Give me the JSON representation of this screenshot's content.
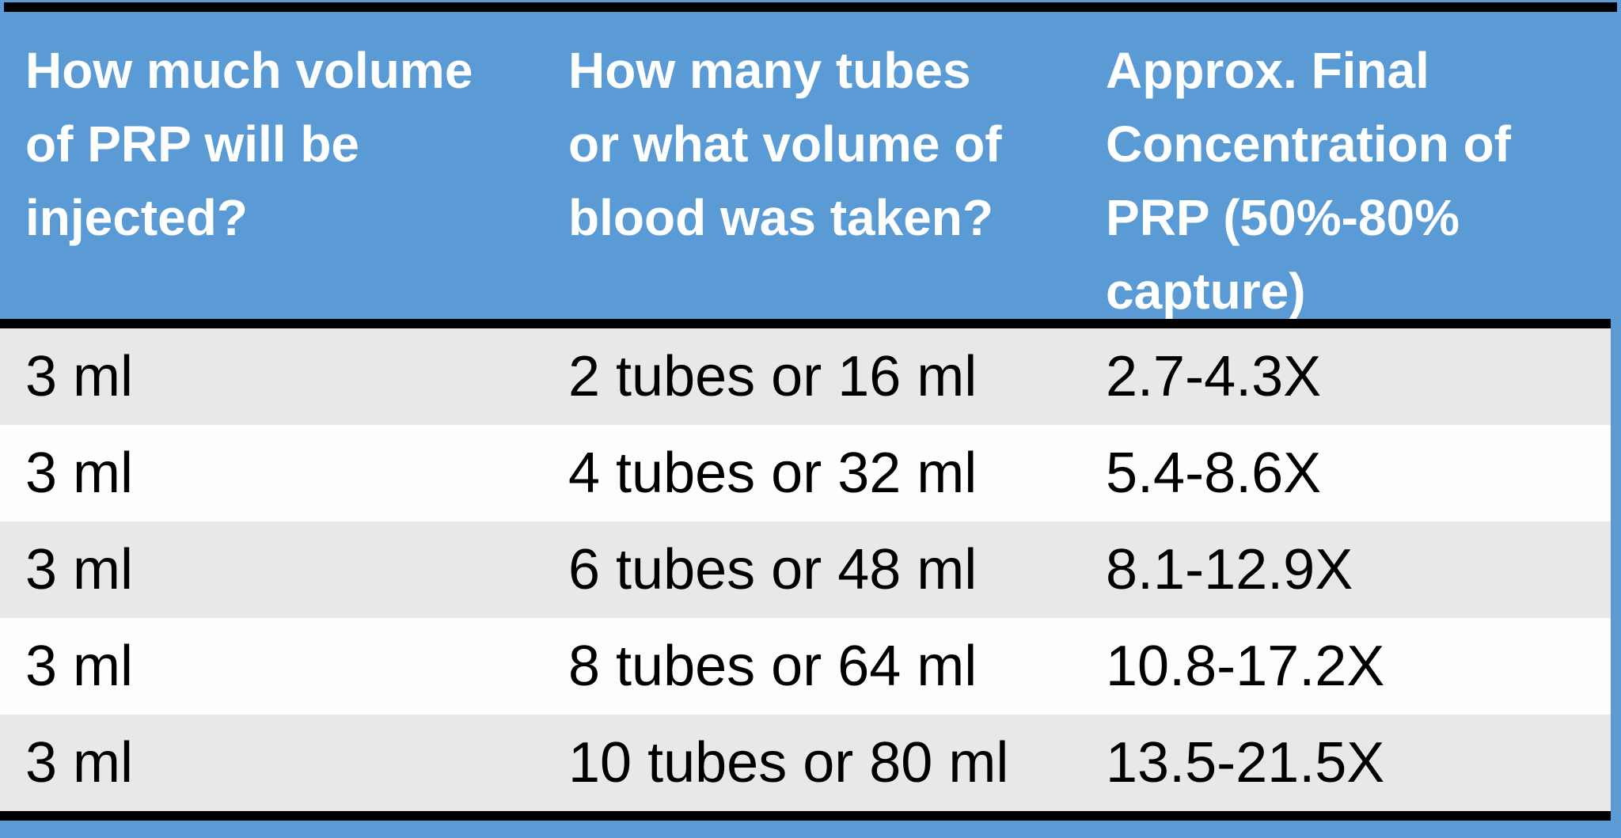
{
  "colors": {
    "accent_blue": "#5b9bd5",
    "band_gray": "#e8e8e8",
    "band_white": "#fdfdfd",
    "rule_black": "#000000",
    "header_text": "#ffffff",
    "body_text": "#000000"
  },
  "table": {
    "columns": [
      {
        "id": "prp-volume",
        "header_lines": [
          "How much volume",
          "of PRP will be",
          "injected?"
        ]
      },
      {
        "id": "tubes-or-blood-volume",
        "header_lines": [
          "How many tubes",
          "or what volume of",
          "blood was taken?"
        ]
      },
      {
        "id": "final-concentration",
        "header_lines": [
          "Approx. Final",
          "Concentration of",
          "PRP (50%-80%",
          "capture)"
        ]
      }
    ],
    "rows": [
      [
        "3 ml",
        "2 tubes or 16 ml",
        "2.7-4.3X"
      ],
      [
        "3 ml",
        "4 tubes or 32 ml",
        "5.4-8.6X"
      ],
      [
        "3 ml",
        "6 tubes or 48 ml",
        "8.1-12.9X"
      ],
      [
        "3 ml",
        "8 tubes or 64 ml",
        "10.8-17.2X"
      ],
      [
        "3 ml",
        "10 tubes or 80 ml",
        "13.5-21.5X"
      ]
    ]
  },
  "chart_data": {
    "type": "table",
    "columns": [
      "How much volume of PRP will be injected?",
      "How many tubes or what volume of blood was taken?",
      "Approx. Final Concentration of PRP (50%-80% capture)"
    ],
    "rows": [
      [
        "3 ml",
        "2 tubes or 16 ml",
        "2.7-4.3X"
      ],
      [
        "3 ml",
        "4 tubes or 32 ml",
        "5.4-8.6X"
      ],
      [
        "3 ml",
        "6 tubes or 48 ml",
        "8.1-12.9X"
      ],
      [
        "3 ml",
        "8 tubes or 64 ml",
        "10.8-17.2X"
      ],
      [
        "3 ml",
        "10 tubes or 80 ml",
        "13.5-21.5X"
      ]
    ]
  }
}
